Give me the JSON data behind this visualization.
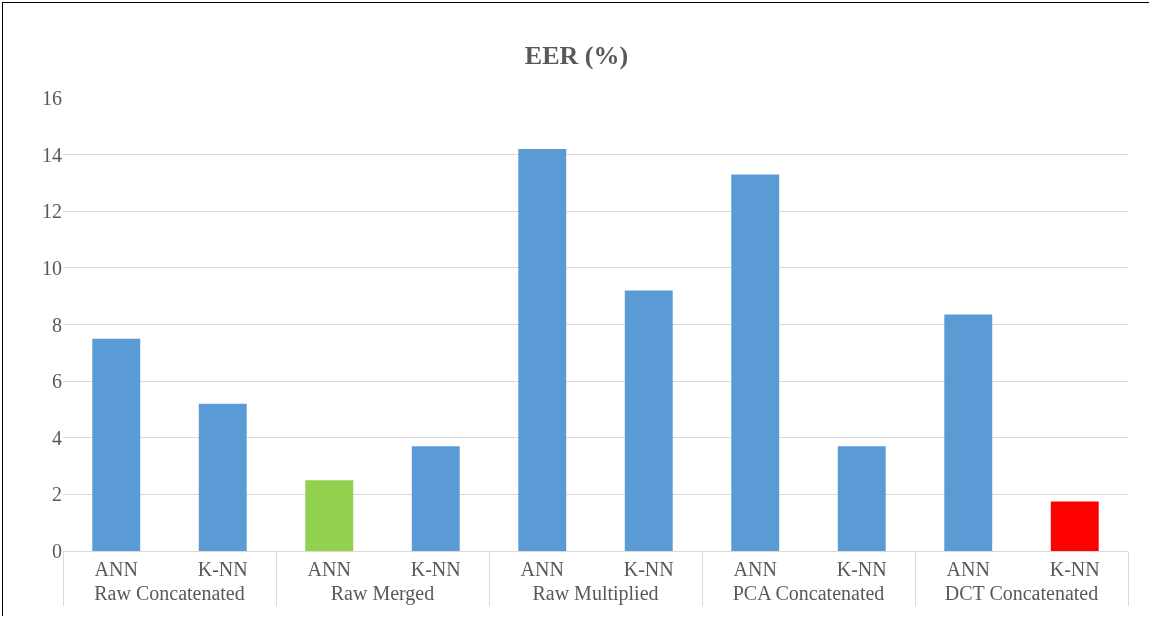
{
  "chart_data": {
    "type": "bar",
    "title": "EER (%)",
    "categories": [
      "ANN",
      "K-NN",
      "ANN",
      "K-NN",
      "ANN",
      "K-NN",
      "ANN",
      "K-NN",
      "ANN",
      "K-NN"
    ],
    "annotations": [
      "Raw Concatenated",
      "Raw Merged",
      "Raw Multiplied",
      "PCA Concatenated",
      "DCT Concatenated"
    ],
    "values": [
      7.5,
      5.2,
      2.5,
      3.7,
      14.2,
      9.2,
      13.3,
      3.7,
      8.35,
      1.75
    ],
    "colors": [
      "#5b9bd5",
      "#5b9bd5",
      "#92d050",
      "#5b9bd5",
      "#5b9bd5",
      "#5b9bd5",
      "#5b9bd5",
      "#5b9bd5",
      "#5b9bd5",
      "#ff0000"
    ],
    "ylim": [
      0,
      16
    ],
    "yticks": [
      0,
      2,
      4,
      6,
      8,
      10,
      12,
      14,
      16
    ],
    "grid": "y",
    "legend": false
  }
}
